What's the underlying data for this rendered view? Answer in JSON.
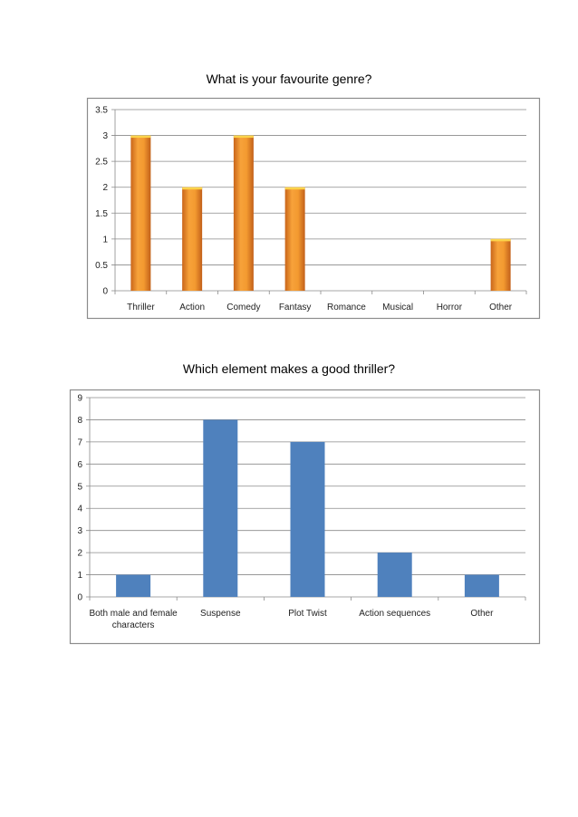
{
  "chart_data": [
    {
      "type": "bar",
      "title": "What is your favourite genre?",
      "categories": [
        "Thriller",
        "Action",
        "Comedy",
        "Fantasy",
        "Romance",
        "Musical",
        "Horror",
        "Other"
      ],
      "values": [
        3,
        2,
        3,
        2,
        0,
        0,
        0,
        1
      ],
      "ylim": [
        0,
        3.5
      ],
      "yticks": [
        "0",
        "0.5",
        "1",
        "1.5",
        "2",
        "2.5",
        "3",
        "3.5"
      ],
      "grid": true,
      "legend": "none",
      "color": "#F0962C"
    },
    {
      "type": "bar",
      "title": "Which element makes a good thriller?",
      "categories": [
        "Both male and female characters",
        "Suspense",
        "Plot Twist",
        "Action sequences",
        "Other"
      ],
      "values": [
        1,
        8,
        7,
        2,
        1
      ],
      "ylim": [
        0,
        9
      ],
      "yticks": [
        "0",
        "1",
        "2",
        "3",
        "4",
        "5",
        "6",
        "7",
        "8",
        "9"
      ],
      "grid": true,
      "legend": "none",
      "color": "#4F81BD"
    }
  ]
}
